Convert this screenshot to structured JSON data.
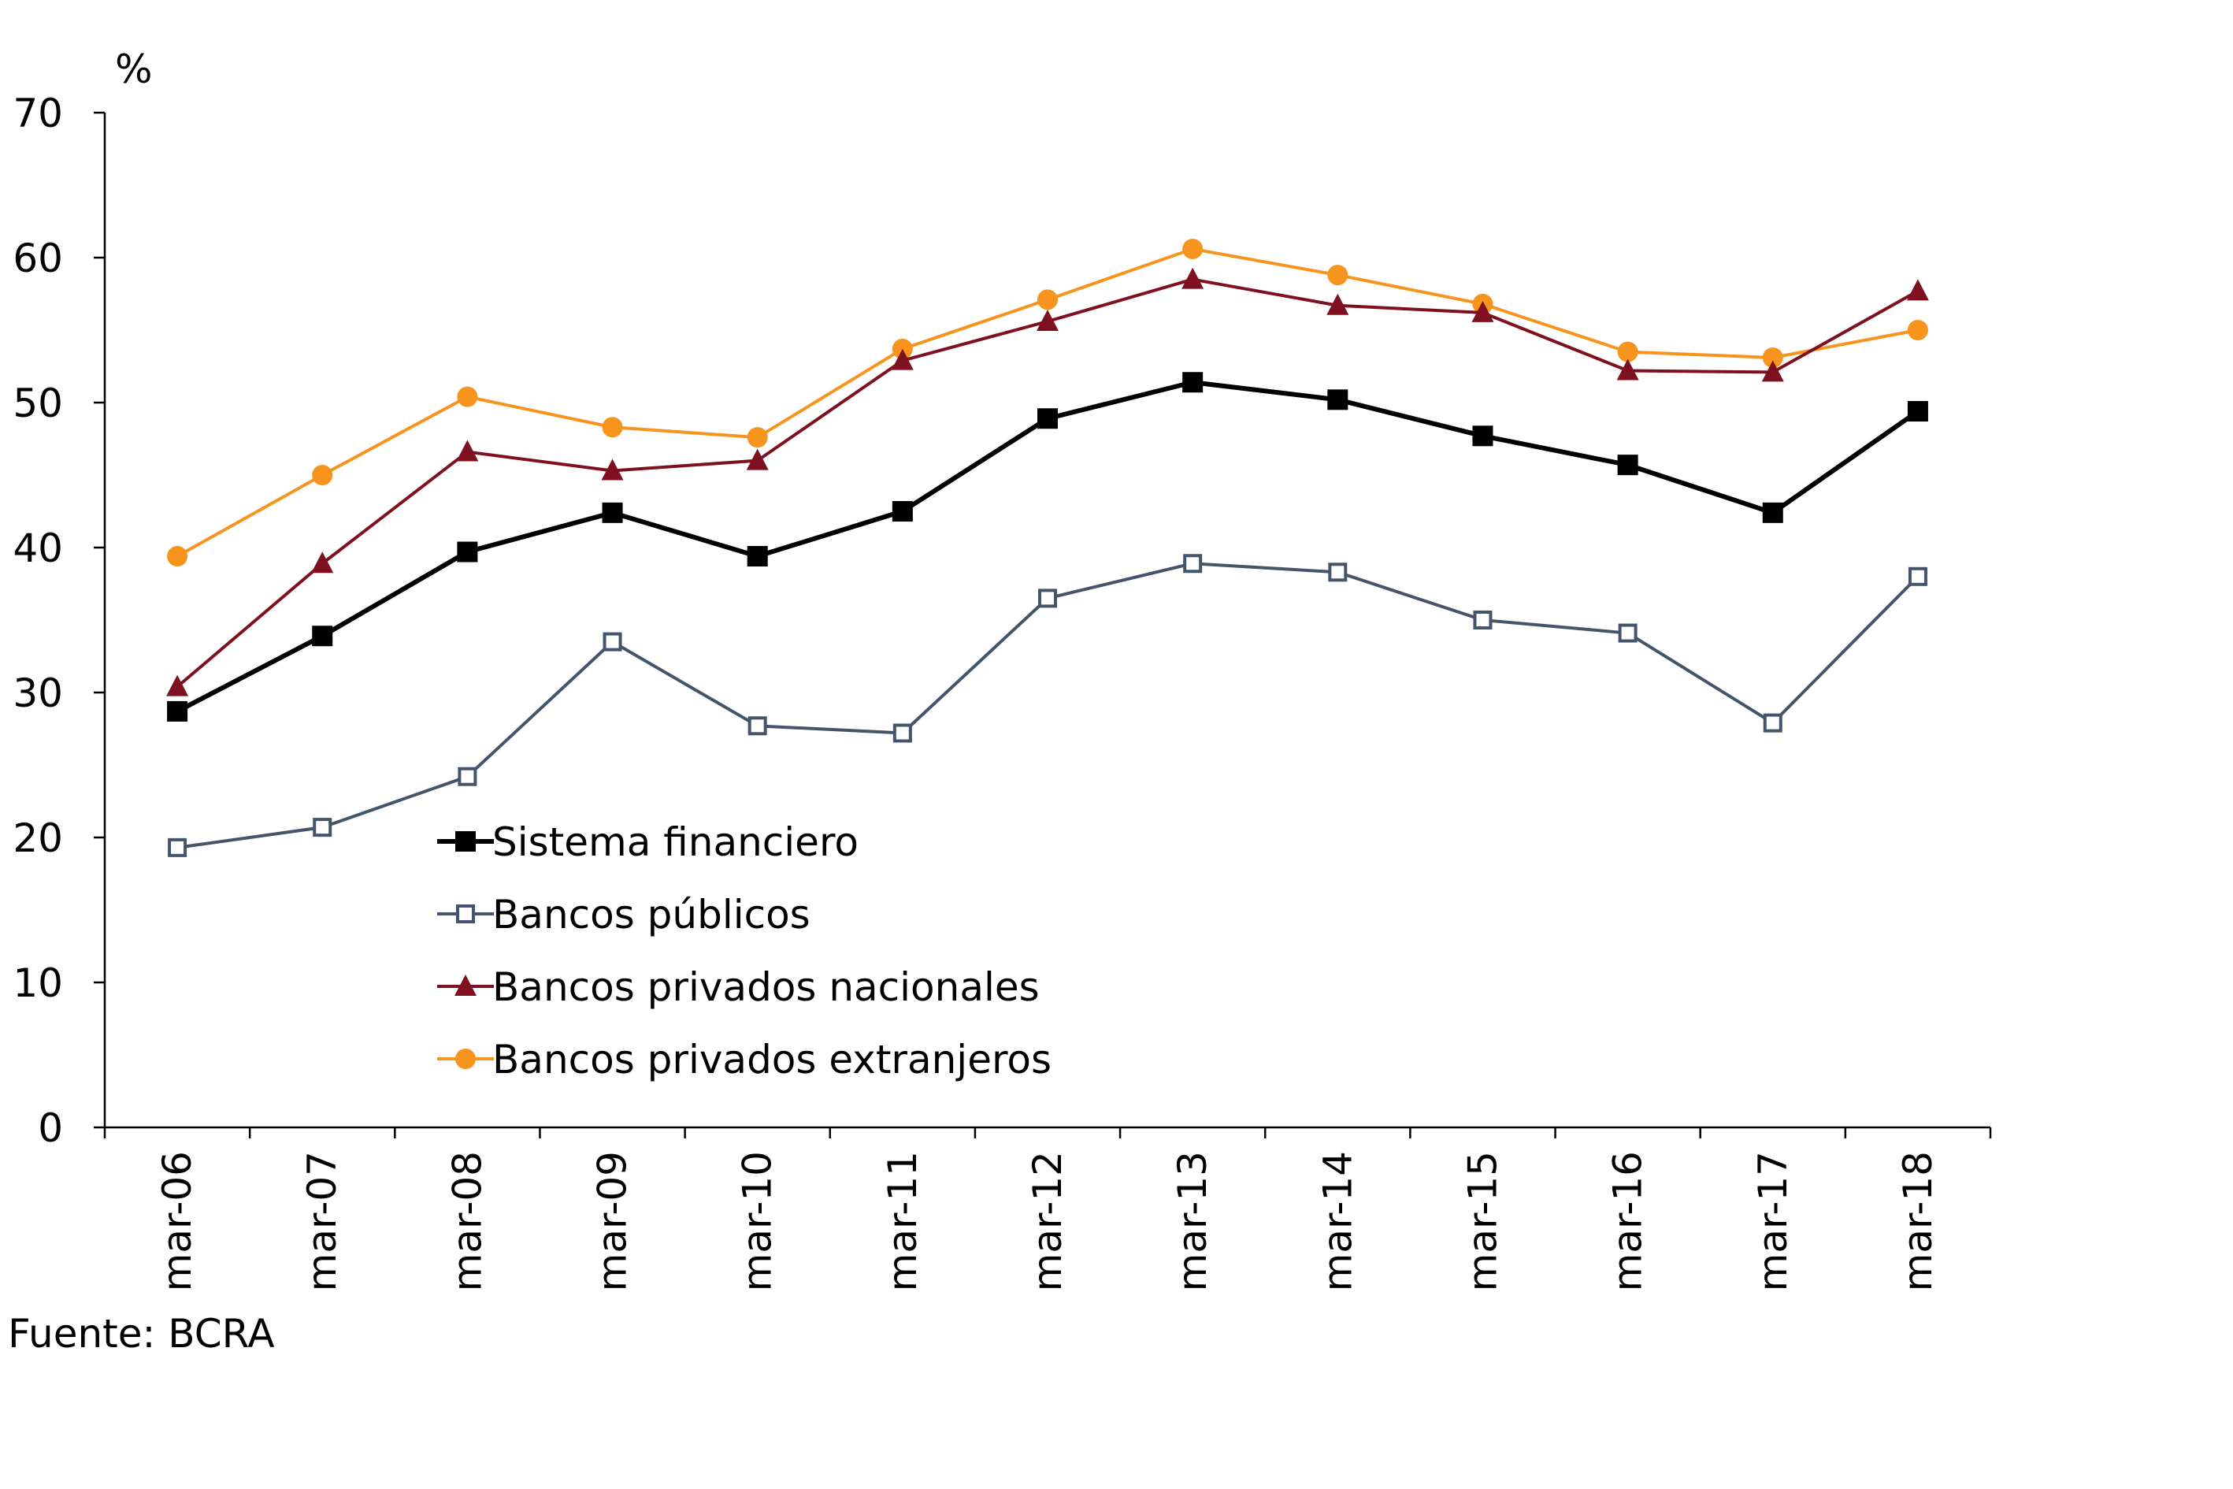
{
  "chart_data": {
    "type": "line",
    "title": "",
    "ylabel": "%",
    "xlabel": "",
    "ylim": [
      0,
      70
    ],
    "yticks": [
      0,
      10,
      20,
      30,
      40,
      50,
      60,
      70
    ],
    "grid": false,
    "legend_position": "inside-bottom-center",
    "categories": [
      "mar-06",
      "mar-07",
      "mar-08",
      "mar-09",
      "mar-10",
      "mar-11",
      "mar-12",
      "mar-13",
      "mar-14",
      "mar-15",
      "mar-16",
      "mar-17",
      "mar-18"
    ],
    "series": [
      {
        "name": "Sistema financiero",
        "color": "#000000",
        "marker": "square-filled",
        "values": [
          28.7,
          33.9,
          39.7,
          42.4,
          39.4,
          42.5,
          48.9,
          51.4,
          50.2,
          47.7,
          45.7,
          42.4,
          49.4
        ]
      },
      {
        "name": "Bancos públicos",
        "color": "#44546a",
        "marker": "square-open",
        "values": [
          19.3,
          20.7,
          24.2,
          33.5,
          27.7,
          27.2,
          36.5,
          38.9,
          38.3,
          35.0,
          34.1,
          27.9,
          38.0
        ]
      },
      {
        "name": "Bancos privados nacionales",
        "color": "#7f1020",
        "marker": "triangle-filled",
        "values": [
          30.4,
          38.9,
          46.6,
          45.3,
          46.0,
          52.9,
          55.6,
          58.5,
          56.7,
          56.2,
          52.2,
          52.1,
          57.7
        ]
      },
      {
        "name": "Bancos privados extranjeros",
        "color": "#f7941d",
        "marker": "circle-filled",
        "values": [
          39.4,
          45.0,
          50.4,
          48.3,
          47.6,
          53.7,
          57.1,
          60.6,
          58.8,
          56.8,
          53.5,
          53.1,
          55.0
        ]
      }
    ]
  },
  "source": "Fuente: BCRA"
}
